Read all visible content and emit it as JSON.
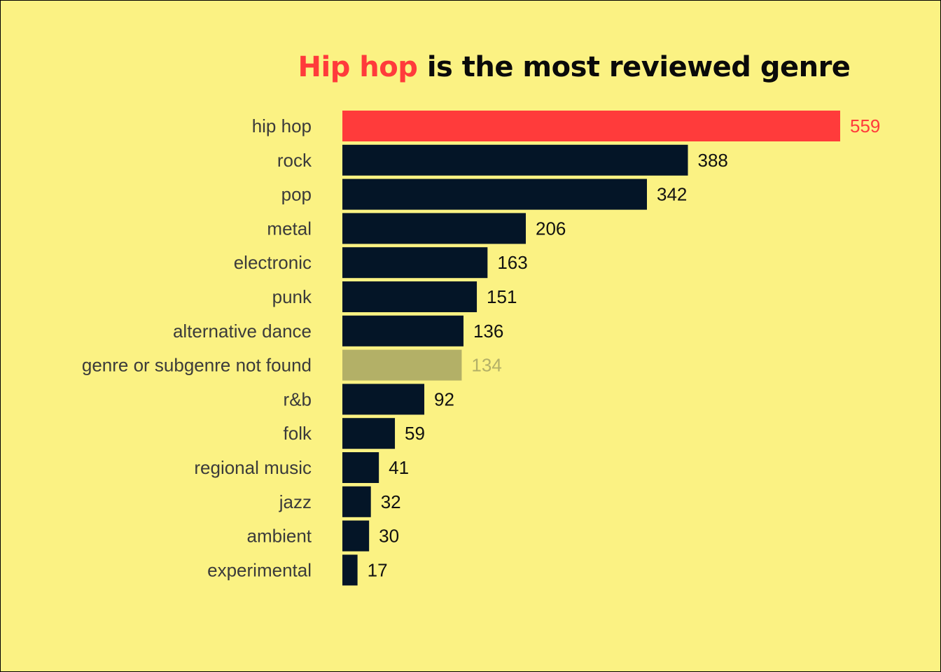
{
  "chart_data": {
    "type": "bar",
    "orientation": "horizontal",
    "title_highlight": "Hip hop",
    "title_rest": " is the most reviewed genre",
    "xlabel": "",
    "ylabel": "",
    "xlim": [
      0,
      559
    ],
    "grid": false,
    "legend": "none",
    "categories": [
      "hip hop",
      "rock",
      "pop",
      "metal",
      "electronic",
      "punk",
      "alternative dance",
      "genre or subgenre not found",
      "r&b",
      "folk",
      "regional music",
      "jazz",
      "ambient",
      "experimental"
    ],
    "values": [
      559,
      388,
      342,
      206,
      163,
      151,
      136,
      134,
      92,
      59,
      41,
      32,
      30,
      17
    ],
    "colors": {
      "background": "#fbf283",
      "highlight": "#ff3b3b",
      "default": "#041527",
      "muted": "#b3b067",
      "label": "#3b3b3b"
    },
    "bar_styles": [
      "highlight",
      "default",
      "default",
      "default",
      "default",
      "default",
      "default",
      "muted",
      "default",
      "default",
      "default",
      "default",
      "default",
      "default"
    ]
  }
}
